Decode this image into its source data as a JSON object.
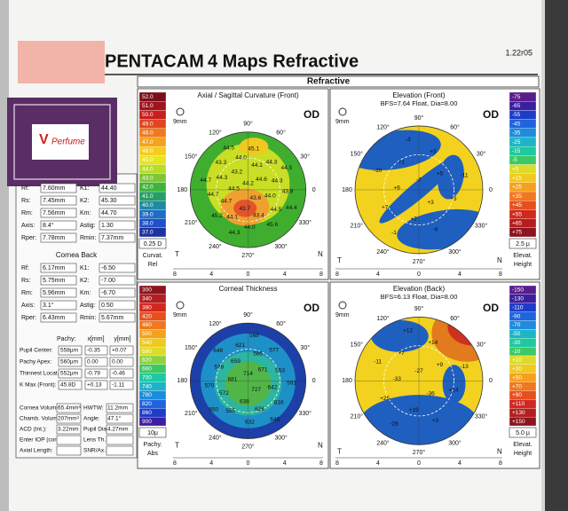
{
  "header": {
    "brand": "PENTACAM",
    "title": "4 Maps Refractive",
    "version": "1.22r05",
    "section": "Refractive"
  },
  "overlay": {
    "sticker": "Perfume"
  },
  "cornea_front": {
    "items": [
      {
        "label": "Rf:",
        "value": "7.60mm"
      },
      {
        "label": "K1:",
        "value": "44.40"
      },
      {
        "label": "Rs:",
        "value": "7.45mm"
      },
      {
        "label": "K2:",
        "value": "45.30"
      },
      {
        "label": "Rm:",
        "value": "7.56mm"
      },
      {
        "label": "Km:",
        "value": "44.70"
      },
      {
        "label": "Axis:",
        "value": "8.4°"
      },
      {
        "label": "Astig:",
        "value": "1.30"
      },
      {
        "label": "Rper:",
        "value": "7.78mm"
      },
      {
        "label": "Rmin:",
        "value": "7.37mm"
      }
    ]
  },
  "cornea_back": {
    "title": "Cornea Back",
    "items": [
      {
        "label": "Rf:",
        "value": "6.17mm"
      },
      {
        "label": "K1:",
        "value": "-6.50"
      },
      {
        "label": "Rs:",
        "value": "5.75mm"
      },
      {
        "label": "K2:",
        "value": "-7.00"
      },
      {
        "label": "Rm:",
        "value": "5.96mm"
      },
      {
        "label": "Km:",
        "value": "-6.70"
      },
      {
        "label": "Axis:",
        "value": "3.1°"
      },
      {
        "label": "Astig:",
        "value": "0.50"
      },
      {
        "label": "Rper:",
        "value": "6.43mm"
      },
      {
        "label": "Rmin:",
        "value": "5.67mm"
      }
    ]
  },
  "pachy": {
    "header": [
      "Pachy:",
      "x[mm]",
      "y[mm]"
    ],
    "rows": [
      [
        "Pupil Center:",
        "558µm",
        "-0.35",
        "+0.07"
      ],
      [
        "Pachy Apex:",
        "560µm",
        "0.00",
        "0.00"
      ],
      [
        "Thinnest Locat.:",
        "552µm",
        "-0.79",
        "-0.46"
      ],
      [
        "K Max (Front):",
        "45.8D",
        "+0.13",
        "-1.11"
      ]
    ]
  },
  "chamber": {
    "items": [
      {
        "label": "Cornea Volume:",
        "value": "65.4mm³"
      },
      {
        "label": "HWTW:",
        "value": "11.2mm"
      },
      {
        "label": "Chamb. Volume:",
        "value": "207mm³"
      },
      {
        "label": "Angle:",
        "value": "47.1°"
      },
      {
        "label": "ACD (Int.):",
        "value": "3.22mm"
      },
      {
        "label": "Pupil Dia:",
        "value": "4.27mm"
      },
      {
        "label": "Enter IOP (corr.):"
      },
      {
        "label": "Lens Th.:"
      },
      {
        "label": "Axial Length:"
      },
      {
        "label": "SNR/Ax.:"
      }
    ]
  },
  "compass": [
    "90°",
    "120°",
    "60°",
    "150°",
    "30°",
    "180",
    "0",
    "210°",
    "330°",
    "240°",
    "300°",
    "270°"
  ],
  "sides": [
    "T",
    "N"
  ],
  "ruler": [
    8,
    4,
    0,
    4,
    8
  ],
  "maps": [
    {
      "title": "Axial / Sagittal Curvature (Front)",
      "eye": "OD",
      "zone": "9mm",
      "scale": [
        "52.0",
        "51.0",
        "50.0",
        "49.0",
        "48.0",
        "47.0",
        "46.0",
        "45.0",
        "44.0",
        "43.0",
        "42.0",
        "41.0",
        "40.0",
        "39.0",
        "38.0",
        "37.0"
      ],
      "step": "0.25 D",
      "units": [
        "Curvat.",
        "Rel"
      ],
      "values": [
        "44.2",
        "43.6",
        "44.5",
        "44.6",
        "43.7",
        "43.2",
        "44.0",
        "44.7",
        "44.1",
        "43.4",
        "44.3",
        "44.3",
        "44.1",
        "44.0",
        "44.5",
        "44.7",
        "44.3",
        "44.0",
        "43.3",
        "43.8",
        "45.2",
        "45.1",
        "45.6",
        "44.7",
        "44.5",
        "44.3",
        "44.5",
        "44.4"
      ]
    },
    {
      "title": "Elevation (Front)",
      "subtitle": "BFS=7.64 Float, Dia=8.00",
      "eye": "OD",
      "zone": "9mm",
      "scale": [
        "-75",
        "-65",
        "-55",
        "-45",
        "-35",
        "-25",
        "-15",
        "-5",
        "+5",
        "+15",
        "+25",
        "+35",
        "+45",
        "+55",
        "+65",
        "+75"
      ],
      "step": "2.5 µ",
      "units": [
        "Elevat.",
        "Height"
      ],
      "values": [
        "-7",
        "+3",
        "+6",
        "+5",
        "+2",
        "+1",
        "+3",
        "+7",
        "+3",
        "-6",
        "-10",
        "-11",
        "-1",
        "-3"
      ]
    },
    {
      "title": "Corneal Thickness",
      "eye": "OD",
      "zone": "9mm",
      "scale": [
        "300",
        "340",
        "380",
        "420",
        "460",
        "500",
        "540",
        "580",
        "620",
        "660",
        "700",
        "740",
        "780",
        "820",
        "860",
        "900"
      ],
      "step": "10µ",
      "units": [
        "Pachy.",
        "Abs"
      ],
      "values": [
        "714",
        "727",
        "681",
        "671",
        "638",
        "659",
        "642",
        "572",
        "585",
        "626",
        "578",
        "553",
        "555",
        "621",
        "616",
        "570",
        "577",
        "632",
        "648",
        "591",
        "650",
        "568",
        "646"
      ]
    },
    {
      "title": "Elevation (Back)",
      "subtitle": "BFS=6.13 Float, Dia=8.00",
      "eye": "OD",
      "zone": "9mm",
      "scale": [
        "-150",
        "-130",
        "-110",
        "-90",
        "-70",
        "-50",
        "-30",
        "-10",
        "+10",
        "+30",
        "+50",
        "+70",
        "+90",
        "+110",
        "+130",
        "+150"
      ],
      "step": "5.0 µ",
      "units": [
        "Elevat.",
        "Height"
      ],
      "values": [
        "-27",
        "-36",
        "-33",
        "+9",
        "+19",
        "+7",
        "+14",
        "+25",
        "+14",
        "+3",
        "-11",
        "-13",
        "-28",
        "+12"
      ]
    }
  ]
}
